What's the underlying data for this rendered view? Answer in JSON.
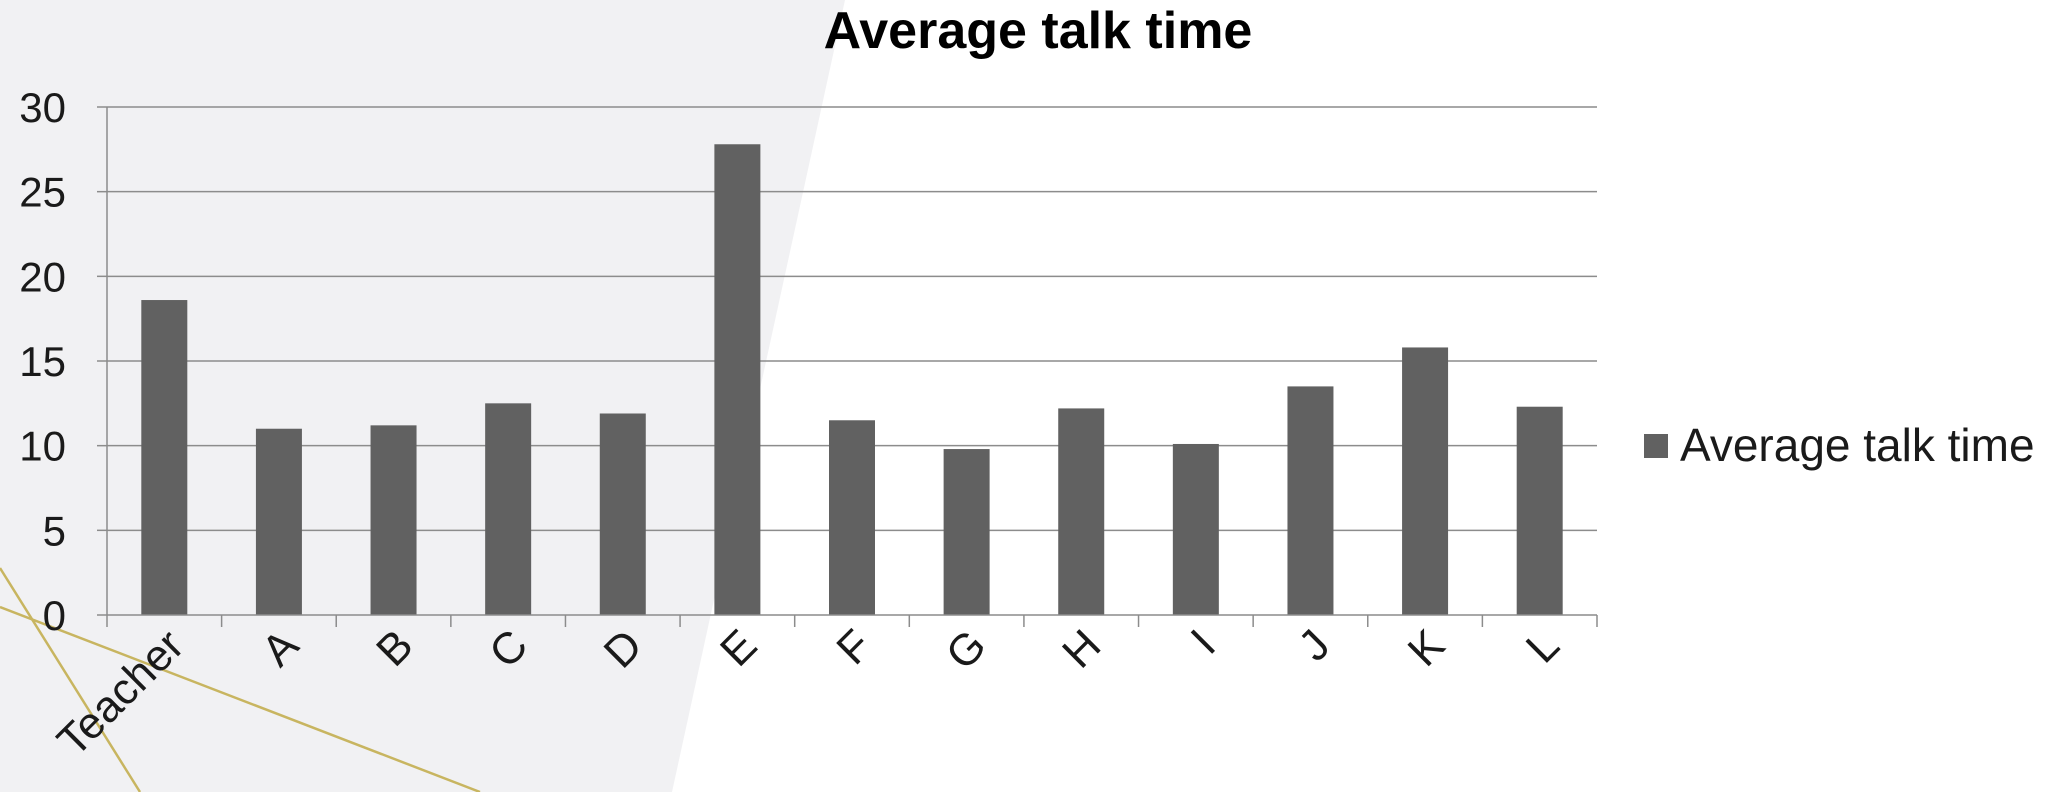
{
  "chart_data": {
    "type": "bar",
    "title": "Average talk time",
    "categories": [
      "Teacher",
      "A",
      "B",
      "C",
      "D",
      "E",
      "F",
      "G",
      "H",
      "I",
      "J",
      "K",
      "L"
    ],
    "series": [
      {
        "name": "Average talk time",
        "color": "#616161",
        "values": [
          18.6,
          11.0,
          11.2,
          12.5,
          11.9,
          27.8,
          11.5,
          9.8,
          12.2,
          10.1,
          13.5,
          15.8,
          12.3
        ]
      }
    ],
    "ylim": [
      0,
      30
    ],
    "yticks": [
      "0",
      "5",
      "10",
      "15",
      "20",
      "25",
      "30"
    ],
    "grid": true,
    "legend_position": "right",
    "colors": {
      "bar": "#616161",
      "grid": "#8c8c8c",
      "background_panel": "#f1f1f3",
      "decor_line": "#c8b560"
    }
  }
}
